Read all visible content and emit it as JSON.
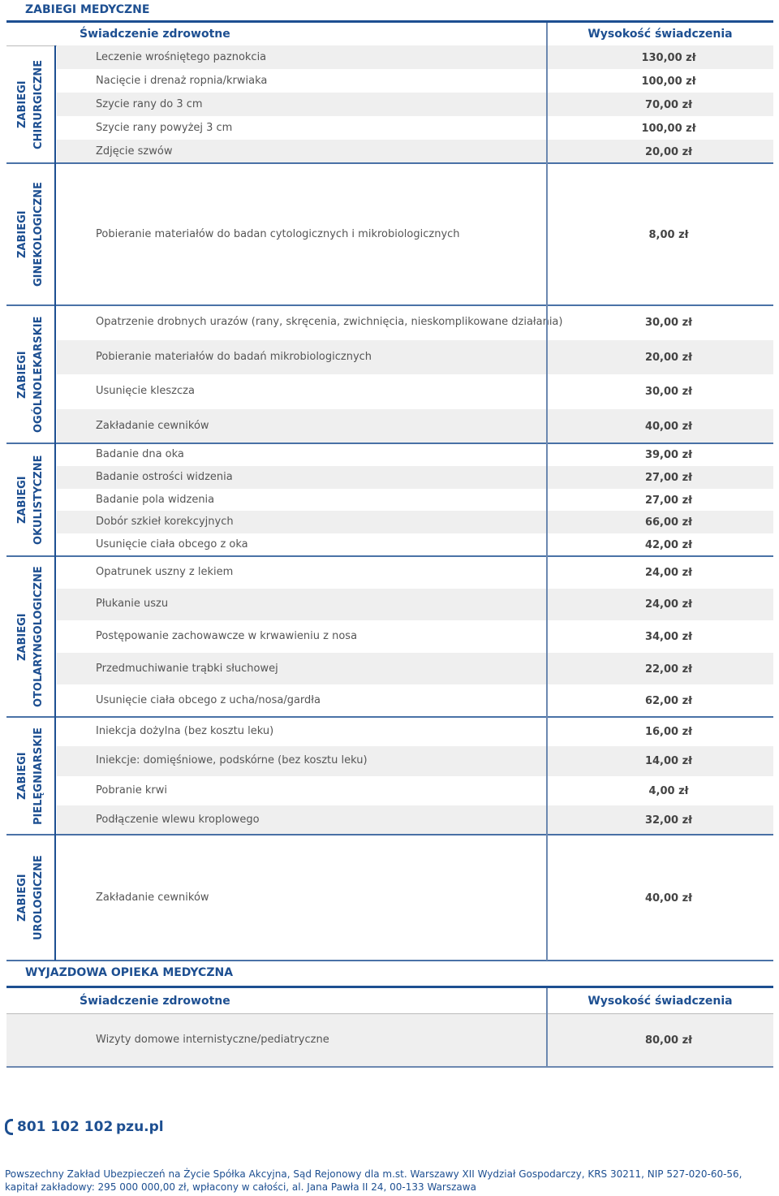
{
  "section1": {
    "title": "ZABIEGI MEDYCZNE",
    "headers": [
      "Świadczenie zdrowotne",
      "Wysokość świadczenia"
    ],
    "groups": [
      {
        "label": [
          "ZABIEGI",
          "CHIRURGICZNE"
        ],
        "rows": [
          [
            "Leczenie wrośniętego paznokcia",
            "130,00 zł"
          ],
          [
            "Nacięcie i drenaż ropnia/krwiaka",
            "100,00 zł"
          ],
          [
            "Szycie rany do 3 cm",
            "70,00 zł"
          ],
          [
            "Szycie rany powyżej 3 cm",
            "100,00 zł"
          ],
          [
            "Zdjęcie szwów",
            "20,00 zł"
          ]
        ]
      },
      {
        "label": [
          "ZABIEGI",
          "GINEKOLOGICZNE"
        ],
        "rows": [
          [
            "Pobieranie materiałów do badan cytologicznych i mikrobiologicznych",
            "8,00 zł"
          ]
        ]
      },
      {
        "label": [
          "ZABIEGI",
          "OGÓLNOLEKARSKIE"
        ],
        "rows": [
          [
            "Opatrzenie drobnych urazów (rany, skręcenia, zwichnięcia, nieskomplikowane działania)",
            "30,00 zł"
          ],
          [
            "Pobieranie materiałów do badań mikrobiologicznych",
            "20,00 zł"
          ],
          [
            "Usunięcie kleszcza",
            "30,00 zł"
          ],
          [
            "Zakładanie cewników",
            "40,00 zł"
          ]
        ]
      },
      {
        "label": [
          "ZABIEGI",
          "OKULISTYCZNE"
        ],
        "rows": [
          [
            "Badanie dna oka",
            "39,00 zł"
          ],
          [
            "Badanie ostrości widzenia",
            "27,00 zł"
          ],
          [
            "Badanie pola widzenia",
            "27,00 zł"
          ],
          [
            "Dobór szkieł korekcyjnych",
            "66,00 zł"
          ],
          [
            "Usunięcie ciała obcego z oka",
            "42,00 zł"
          ]
        ]
      },
      {
        "label": [
          "ZABIEGI",
          "OTOLARYNGOLOGICZNE"
        ],
        "rows": [
          [
            "Opatrunek uszny z lekiem",
            "24,00 zł"
          ],
          [
            "Płukanie uszu",
            "24,00 zł"
          ],
          [
            "Postępowanie zachowawcze w krwawieniu z nosa",
            "34,00 zł"
          ],
          [
            "Przedmuchiwanie trąbki słuchowej",
            "22,00 zł"
          ],
          [
            "Usunięcie ciała obcego z ucha/nosa/gardła",
            "62,00 zł"
          ]
        ]
      },
      {
        "label": [
          "ZABIEGI",
          "PIELĘGNIARSKIE"
        ],
        "rows": [
          [
            "Iniekcja dożylna (bez kosztu leku)",
            "16,00 zł"
          ],
          [
            "Iniekcje: domięśniowe, podskórne (bez kosztu leku)",
            "14,00 zł"
          ],
          [
            "Pobranie krwi",
            "4,00 zł"
          ],
          [
            "Podłączenie wlewu kroplowego",
            "32,00 zł"
          ]
        ]
      },
      {
        "label": [
          "ZABIEGI",
          "UROLOGICZNE"
        ],
        "rows": [
          [
            "Zakładanie cewników",
            "40,00 zł"
          ]
        ]
      }
    ]
  },
  "section2": {
    "title": "WYJAZDOWA OPIEKA MEDYCZNA",
    "headers": [
      "Świadczenie zdrowotne",
      "Wysokość świadczenia"
    ],
    "rows": [
      [
        "Wizyty domowe internistyczne/pediatryczne",
        "80,00 zł"
      ]
    ]
  },
  "contact": {
    "phone": "801 102 102",
    "web": "pzu.pl"
  },
  "footer": [
    "Powszechny Zakład Ubezpieczeń na Życie Spółka Akcyjna, Sąd Rejonowy dla m.st. Warszawy XII Wydział Gospodarczy, KRS 30211, NIP 527-020-60-56,",
    "kapitał zakładowy: 295 000 000,00 zł, wpłacony w całości, al. Jana Pawła II 24, 00-133 Warszawa"
  ]
}
